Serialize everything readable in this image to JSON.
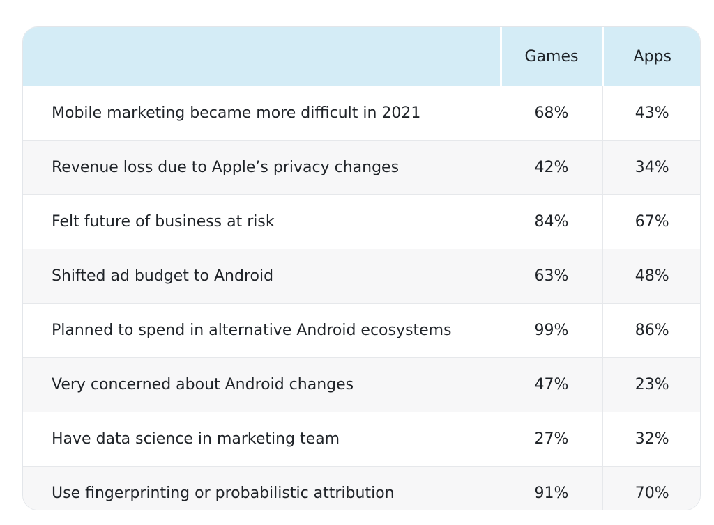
{
  "chart_data": {
    "type": "table",
    "columns": [
      "",
      "Games",
      "Apps"
    ],
    "rows": [
      {
        "label": "Mobile marketing became more difficult in 2021",
        "games": "68%",
        "apps": "43%"
      },
      {
        "label": "Revenue loss due to Apple’s privacy changes",
        "games": "42%",
        "apps": "34%"
      },
      {
        "label": "Felt future of business at risk",
        "games": "84%",
        "apps": "67%"
      },
      {
        "label": "Shifted ad budget to Android",
        "games": "63%",
        "apps": "48%"
      },
      {
        "label": "Planned to spend in alternative Android ecosystems",
        "games": "99%",
        "apps": "86%"
      },
      {
        "label": "Very concerned about Android changes",
        "games": "47%",
        "apps": "23%"
      },
      {
        "label": "Have data science in marketing team",
        "games": "27%",
        "apps": "32%"
      },
      {
        "label": "Use fingerprinting or probabilistic attribution",
        "games": "91%",
        "apps": "70%"
      }
    ],
    "header_color": "#d4ecf6",
    "alt_row_color": "#f7f7f8"
  }
}
